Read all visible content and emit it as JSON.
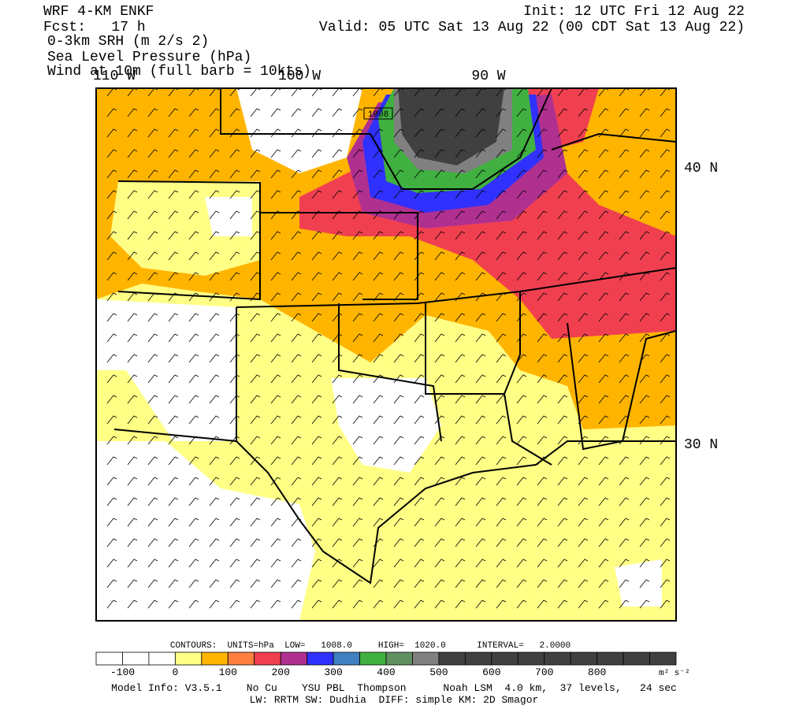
{
  "header": {
    "left": [
      "WRF 4-KM ENKF",
      "Fcst:   17 h",
      "0-3km SRH (m 2/s 2)",
      "Sea Level Pressure (hPa)",
      "Wind at 10m (full barb = 10kts)"
    ],
    "right": [
      "Init: 12 UTC Fri 12 Aug 22",
      "Valid: 05 UTC Sat 13 Aug 22 (00 CDT Sat 13 Aug 22)"
    ]
  },
  "map": {
    "lon_labels": [
      "110 W",
      "100 W",
      "90 W"
    ],
    "lat_labels": [
      "40 N",
      "30 N"
    ],
    "contour_label": "1008"
  },
  "colorbar": {
    "ticks": [
      -100,
      0,
      100,
      200,
      300,
      400,
      500,
      600,
      700,
      800
    ],
    "units": "m² s⁻²",
    "colors": [
      "#ffffff",
      "#ffffff",
      "#ffffff",
      "#ffff85",
      "#ffb400",
      "#ff7f3f",
      "#f04050",
      "#b03090",
      "#3030ff",
      "#4080c0",
      "#40b040",
      "#609060",
      "#808080",
      "#404040",
      "#404040",
      "#404040",
      "#404040",
      "#404040",
      "#404040",
      "#404040",
      "#404040",
      "#404040"
    ]
  },
  "footer": {
    "contours": "CONTOURS:  UNITS=hPa  LOW=   1008.0     HIGH=  1020.0      INTERVAL=   2.0000",
    "model_info": "Model Info: V3.5.1    No Cu    YSU PBL  Thompson      Noah LSM  4.0 km,  37 levels,   24 sec",
    "physics": "LW: RRTM SW: Dudhia  DIFF: simple KM: 2D Smagor"
  }
}
